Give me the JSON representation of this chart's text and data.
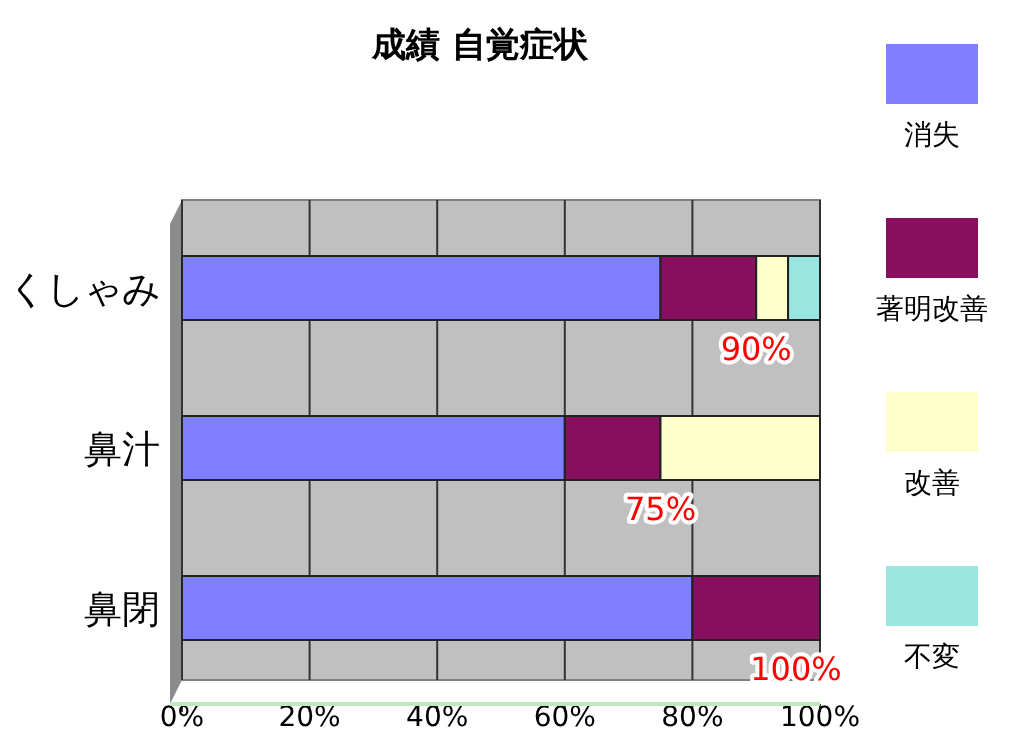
{
  "chart_data": {
    "type": "bar",
    "orientation": "horizontal",
    "stacked": true,
    "title": "成績 自覚症状",
    "categories": [
      "くしゃみ",
      "鼻汁",
      "鼻閉"
    ],
    "series": [
      {
        "name": "消失",
        "color": "#8080ff",
        "values": [
          75,
          60,
          80
        ]
      },
      {
        "name": "著明改善",
        "color": "#880e5e",
        "values": [
          15,
          15,
          20
        ]
      },
      {
        "name": "改善",
        "color": "#ffffcc",
        "values": [
          5,
          25,
          null
        ]
      },
      {
        "name": "不変",
        "color": "#99e6e0",
        "values": [
          5,
          null,
          null
        ]
      }
    ],
    "xlim": [
      0,
      100
    ],
    "xticks": [
      {
        "value": 0,
        "label": "0%"
      },
      {
        "value": 20,
        "label": "20%"
      },
      {
        "value": 40,
        "label": "40%"
      },
      {
        "value": 60,
        "label": "60%"
      },
      {
        "value": 80,
        "label": "80%"
      },
      {
        "value": 100,
        "label": "100%"
      }
    ],
    "grid": "x",
    "legend": "right",
    "annotations": [
      {
        "text": "90%",
        "x": 90,
        "y": "くしゃみ"
      },
      {
        "text": "75%",
        "x": 75,
        "y": "鼻汁"
      },
      {
        "text": "100%",
        "x": 100,
        "y": "鼻閉"
      }
    ]
  }
}
